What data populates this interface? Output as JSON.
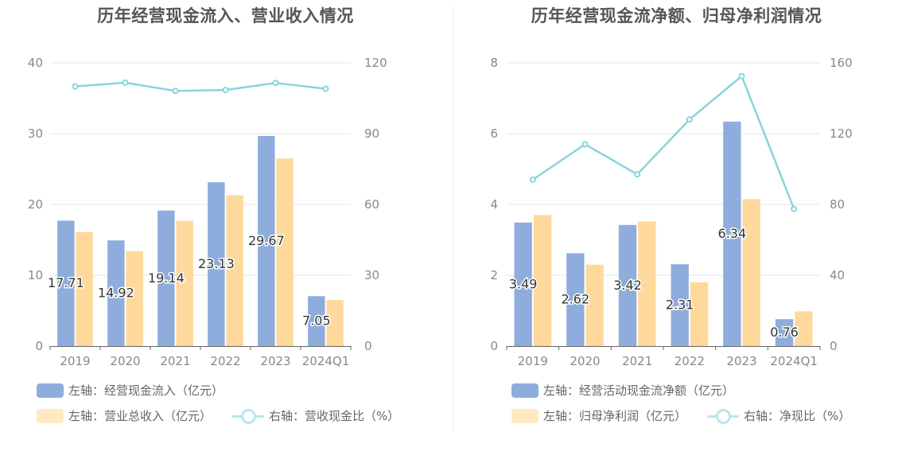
{
  "chart_data": [
    {
      "type": "bar",
      "title": "历年经营现金流入、营业收入情况",
      "categories": [
        "2019",
        "2020",
        "2021",
        "2022",
        "2023",
        "2024Q1"
      ],
      "ylim_left": [
        0,
        40
      ],
      "ylim_right": [
        0,
        120
      ],
      "yticks_left": [
        "0",
        "10",
        "20",
        "30",
        "40"
      ],
      "yticks_right": [
        "0",
        "30",
        "60",
        "90",
        "120"
      ],
      "grid": true,
      "legend_position": "bottom",
      "series": [
        {
          "name": "左轴：经营现金流入（亿元）",
          "axis": "left",
          "kind": "bar",
          "color": "#8eaddc",
          "values": [
            17.71,
            14.92,
            19.14,
            23.13,
            29.67,
            7.05
          ],
          "labels": [
            "17.71",
            "14.92",
            "19.14",
            "23.13",
            "29.67",
            "7.05"
          ]
        },
        {
          "name": "左轴：营业总收入（亿元）",
          "axis": "left",
          "kind": "bar",
          "color": "#ffd99b",
          "values": [
            16.1,
            13.4,
            17.7,
            21.3,
            26.5,
            6.5
          ]
        },
        {
          "name": "右轴：营收现金比（%）",
          "axis": "right",
          "kind": "line",
          "color": "#88d4dc",
          "values": [
            110.0,
            111.6,
            108.1,
            108.5,
            111.5,
            109.0
          ]
        }
      ]
    },
    {
      "type": "bar",
      "title": "历年经营现金流净额、归母净利润情况",
      "categories": [
        "2019",
        "2020",
        "2021",
        "2022",
        "2023",
        "2024Q1"
      ],
      "ylim_left": [
        0,
        8
      ],
      "ylim_right": [
        0,
        160
      ],
      "yticks_left": [
        "0",
        "2",
        "4",
        "6",
        "8"
      ],
      "yticks_right": [
        "0",
        "40",
        "80",
        "120",
        "160"
      ],
      "grid": true,
      "legend_position": "bottom",
      "series": [
        {
          "name": "左轴：经营活动现金流净额（亿元）",
          "axis": "left",
          "kind": "bar",
          "color": "#8eaddc",
          "values": [
            3.49,
            2.62,
            3.42,
            2.31,
            6.34,
            0.76
          ],
          "labels": [
            "3.49",
            "2.62",
            "3.42",
            "2.31",
            "6.34",
            "0.76"
          ]
        },
        {
          "name": "左轴：归母净利润（亿元）",
          "axis": "left",
          "kind": "bar",
          "color": "#ffd99b",
          "values": [
            3.7,
            2.3,
            3.52,
            1.8,
            4.15,
            0.98
          ]
        },
        {
          "name": "右轴：净现比（%）",
          "axis": "right",
          "kind": "line",
          "color": "#88d4dc",
          "values": [
            94.0,
            114.0,
            97.0,
            128.0,
            152.5,
            77.5
          ]
        }
      ]
    }
  ]
}
